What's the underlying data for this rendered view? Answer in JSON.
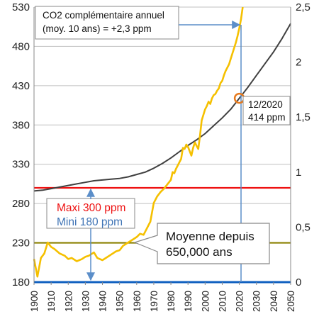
{
  "chart_data": {
    "type": "line",
    "x_range": [
      1900,
      2050
    ],
    "y_left_range": [
      180,
      530
    ],
    "y_right_range": [
      0,
      2.5
    ],
    "y_left_ticks": [
      "180",
      "230",
      "280",
      "330",
      "380",
      "430",
      "480",
      "530"
    ],
    "y_right_ticks": [
      "0",
      "0,5",
      "1",
      "1,5",
      "2",
      "2,5"
    ],
    "x_ticks": [
      "1900",
      "1910",
      "1920",
      "1930",
      "1940",
      "1950",
      "1960",
      "1970",
      "1980",
      "1990",
      "2000",
      "2010",
      "2020",
      "2030",
      "2040",
      "2050"
    ],
    "grid": "horizontal",
    "series": [
      {
        "axis": "left",
        "color": "#404040",
        "x": [
          1900,
          1905,
          1910,
          1915,
          1920,
          1925,
          1930,
          1935,
          1940,
          1945,
          1950,
          1955,
          1960,
          1965,
          1970,
          1975,
          1980,
          1985,
          1990,
          1995,
          2000,
          2005,
          2010,
          2015,
          2020,
          2025,
          2030,
          2035,
          2040,
          2045,
          2050
        ],
        "y": [
          296,
          297,
          299,
          301,
          303,
          305,
          307,
          309,
          310,
          311,
          312,
          314,
          317,
          320,
          325,
          331,
          338,
          346,
          354,
          361,
          369,
          379,
          389,
          400,
          414,
          428,
          443,
          458,
          473,
          490,
          509
        ]
      },
      {
        "axis": "right",
        "color": "#F5C000",
        "x": [
          1900,
          1902,
          1904,
          1906,
          1908,
          1910,
          1912,
          1915,
          1918,
          1920,
          1922,
          1925,
          1928,
          1930,
          1932,
          1935,
          1937,
          1940,
          1942,
          1945,
          1948,
          1950,
          1952,
          1955,
          1958,
          1960,
          1962,
          1964,
          1966,
          1968,
          1970,
          1972,
          1974,
          1976,
          1978,
          1980,
          1981,
          1982,
          1983,
          1984,
          1985,
          1986,
          1987,
          1988,
          1989,
          1990,
          1991,
          1992,
          1993,
          1994,
          1995,
          1996,
          1997,
          1998,
          1999,
          2000,
          2001,
          2002,
          2003,
          2004,
          2005,
          2006,
          2007,
          2008,
          2009,
          2010,
          2011,
          2012,
          2013,
          2014,
          2015,
          2016,
          2017,
          2018,
          2019,
          2020,
          2021,
          2022
        ],
        "y": [
          0.21,
          0.05,
          0.22,
          0.26,
          0.36,
          0.32,
          0.3,
          0.26,
          0.24,
          0.21,
          0.22,
          0.19,
          0.21,
          0.23,
          0.24,
          0.27,
          0.22,
          0.2,
          0.22,
          0.25,
          0.28,
          0.29,
          0.33,
          0.36,
          0.39,
          0.41,
          0.44,
          0.43,
          0.49,
          0.55,
          0.72,
          0.78,
          0.82,
          0.85,
          0.89,
          0.93,
          1.0,
          0.99,
          1.03,
          1.06,
          1.09,
          1.12,
          1.22,
          1.21,
          1.25,
          1.23,
          1.19,
          1.15,
          1.22,
          1.27,
          1.24,
          1.21,
          1.33,
          1.47,
          1.52,
          1.57,
          1.6,
          1.64,
          1.62,
          1.67,
          1.7,
          1.71,
          1.74,
          1.76,
          1.81,
          1.83,
          1.88,
          1.92,
          1.95,
          1.98,
          2.03,
          2.08,
          2.13,
          2.18,
          2.24,
          2.31,
          2.39,
          2.5
        ]
      }
    ],
    "reference_lines": [
      {
        "axis": "left",
        "value": 300,
        "color": "#EE1111"
      },
      {
        "axis": "left",
        "value": 230,
        "color": "#8B8000"
      },
      {
        "axis": "left",
        "value": 180,
        "color": "#1060C0"
      }
    ],
    "vertical_marker": {
      "x": 2021,
      "color": "#5B8EC9"
    },
    "highlight_point": {
      "x": 2020,
      "y": 414,
      "color": "#E67A1E"
    },
    "annotations": {
      "box1_line1": "CO2 complémentaire annuel",
      "box1_line2": "(moy. 10 ans) = +2,3 ppm",
      "box2_line1": "12/2020",
      "box2_line2": "414 ppm",
      "box3_line1": "Moyenne depuis",
      "box3_line2": "650,000 ans",
      "maxi": "Maxi 300 ppm",
      "mini": "Mini  180 ppm"
    }
  }
}
